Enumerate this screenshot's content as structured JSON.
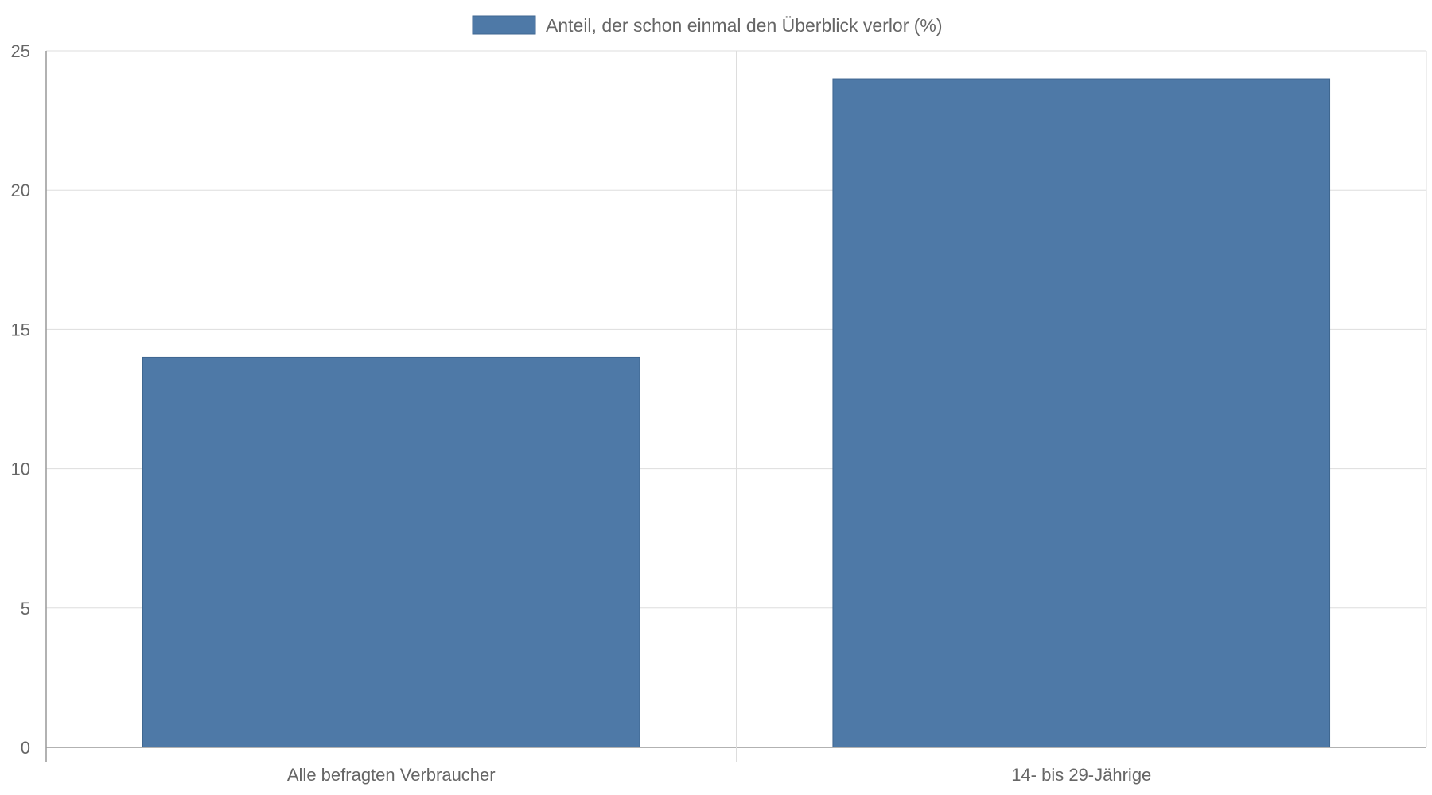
{
  "chart_data": {
    "type": "bar",
    "categories": [
      "Alle befragten Verbraucher",
      "14- bis 29-Jährige"
    ],
    "series": [
      {
        "name": "Anteil, der schon einmal den Überblick verlor (%)",
        "values": [
          14,
          24
        ],
        "color": "#4e79a7"
      }
    ],
    "ylim": [
      0,
      25
    ],
    "yticks": [
      0,
      5,
      10,
      15,
      20,
      25
    ],
    "xlabel": "",
    "ylabel": "",
    "grid": true,
    "legend_position": "top-center"
  }
}
